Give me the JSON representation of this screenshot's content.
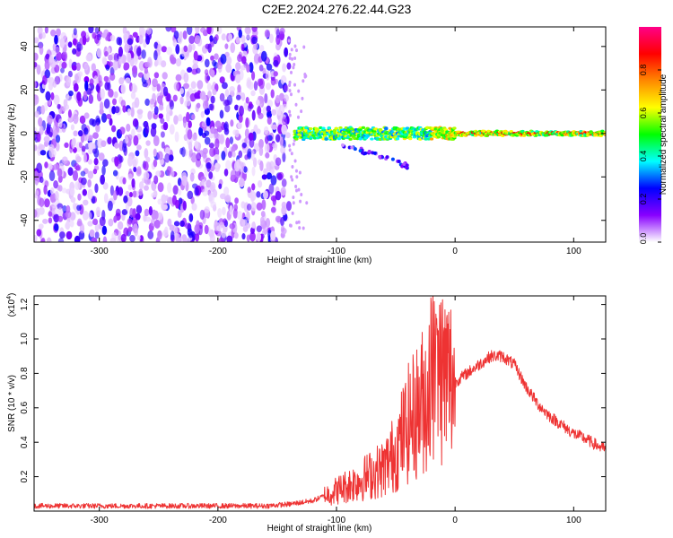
{
  "title": "C2E2.2024.276.22.44.G23",
  "chart_data": [
    {
      "type": "heatmap",
      "xlabel": "Height of straight line (km)",
      "ylabel": "Frequency (Hz)",
      "xlim": [
        -355,
        127
      ],
      "ylim": [
        -50,
        49
      ],
      "xticks": [
        -300,
        -200,
        -100,
        0,
        100
      ],
      "yticks": [
        -40,
        -20,
        0,
        20,
        40
      ],
      "colorbar": {
        "label": "Normalized spectral amplitude",
        "range": [
          0,
          1
        ],
        "ticks": [
          "0.0",
          "0.2",
          "0.4",
          "0.6",
          "0.8"
        ],
        "ticks_numeric": [
          0.0,
          0.2,
          0.4,
          0.6,
          0.8
        ],
        "colormap": [
          "#ffffff",
          "#8800ff",
          "#0000ff",
          "#00ffff",
          "#00ff00",
          "#ffff00",
          "#ff8800",
          "#ff0000",
          "#ff0088"
        ]
      },
      "regions": [
        {
          "name": "noise",
          "x_range": [
            -355,
            -140
          ],
          "y_range": [
            -50,
            49
          ],
          "amplitude": [
            0.02,
            0.25
          ]
        },
        {
          "name": "signal-band",
          "x_range": [
            -135,
            127
          ],
          "center_hz": 0,
          "amplitude": [
            0.3,
            0.9
          ]
        },
        {
          "name": "lower-branch",
          "x_range": [
            -95,
            -40
          ],
          "center_hz": [
            -5,
            -15
          ],
          "amplitude": [
            0.05,
            0.3
          ]
        }
      ]
    },
    {
      "type": "line",
      "xlabel": "Height of straight line (km)",
      "ylabel": "SNR (10 * v/v)",
      "y_multiplier": "(x10",
      "y_multiplier_exp": "4",
      "y_multiplier_close": ")",
      "xlim": [
        -355,
        127
      ],
      "ylim": [
        0,
        1.25
      ],
      "xticks": [
        -300,
        -200,
        -100,
        0,
        100
      ],
      "yticks": [
        "0.2",
        "0.4",
        "0.6",
        "0.8",
        "1.0",
        "1.2"
      ],
      "yticks_numeric": [
        0.2,
        0.4,
        0.6,
        0.8,
        1.0,
        1.2
      ],
      "color": "#ee3333",
      "series": [
        {
          "name": "SNR",
          "x": [
            -355,
            -300,
            -250,
            -200,
            -160,
            -140,
            -120,
            -100,
            -80,
            -60,
            -50,
            -40,
            -30,
            -20,
            -15,
            -10,
            0,
            10,
            20,
            30,
            40,
            50,
            60,
            70,
            80,
            90,
            100,
            110,
            120,
            127
          ],
          "y": [
            0.03,
            0.03,
            0.03,
            0.03,
            0.03,
            0.04,
            0.06,
            0.12,
            0.18,
            0.25,
            0.35,
            0.5,
            0.6,
            0.75,
            0.85,
            0.8,
            0.75,
            0.8,
            0.85,
            0.9,
            0.9,
            0.85,
            0.72,
            0.62,
            0.55,
            0.5,
            0.45,
            0.42,
            0.38,
            0.36
          ]
        }
      ]
    }
  ]
}
